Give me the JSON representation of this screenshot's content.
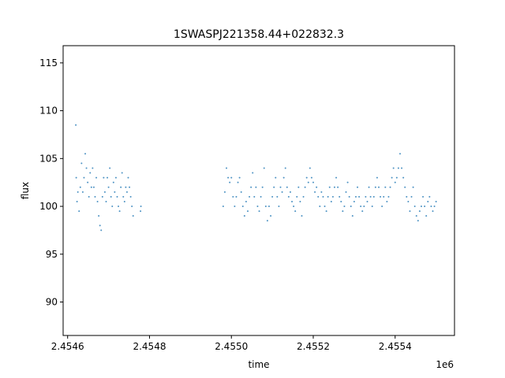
{
  "chart_data": {
    "type": "scatter",
    "title": "1SWASPJ221358.44+022832.3",
    "xlabel": "time",
    "ylabel": "flux",
    "x_offset_label": "1e6",
    "xlim": [
      2454589,
      2455545
    ],
    "ylim": [
      86.5,
      116.8
    ],
    "x_ticks": [
      2454600,
      2454700,
      2454800,
      2455000,
      2455100,
      2455200,
      2455300,
      2455400,
      2455500
    ],
    "x_tick_labels": [
      "2.4546",
      "2.4548",
      "2.4550",
      "2.4552",
      "2.4554"
    ],
    "x_tick_values": [
      2454600,
      2454800,
      2455000,
      2455200,
      2455400
    ],
    "y_ticks": [
      90,
      95,
      100,
      105,
      110,
      115
    ],
    "y_tick_labels": [
      "90",
      "95",
      "100",
      "105",
      "110",
      "115"
    ],
    "grid": false,
    "marker_color": "#1f77b4",
    "series": [
      {
        "x": [
          2454620,
          2454621,
          2454623,
          2454625,
          2454628,
          2454631,
          2454634,
          2454637,
          2454640,
          2454643,
          2454646,
          2454649,
          2454652,
          2454655,
          2454658,
          2454661,
          2454664,
          2454667,
          2454670,
          2454673,
          2454676,
          2454679,
          2454682,
          2454685,
          2454688,
          2454691,
          2454694,
          2454697,
          2454700,
          2454703,
          2454706,
          2454709,
          2454712,
          2454715,
          2454718,
          2454721,
          2454724,
          2454727,
          2454730,
          2454733,
          2454736,
          2454739,
          2454742,
          2454745,
          2454748,
          2454751,
          2454754,
          2454757,
          2454760,
          2454778,
          2454779,
          2454980,
          2454984,
          2454988,
          2454992,
          2454996,
          2455000,
          2455004,
          2455008,
          2455012,
          2455016,
          2455020,
          2455024,
          2455028,
          2455032,
          2455036,
          2455040,
          2455044,
          2455048,
          2455052,
          2455056,
          2455060,
          2455064,
          2455068,
          2455072,
          2455076,
          2455080,
          2455084,
          2455088,
          2455092,
          2455096,
          2455100,
          2455104,
          2455108,
          2455112,
          2455116,
          2455120,
          2455124,
          2455128,
          2455132,
          2455136,
          2455140,
          2455144,
          2455148,
          2455152,
          2455156,
          2455160,
          2455164,
          2455168,
          2455172,
          2455176,
          2455180,
          2455184,
          2455188,
          2455192,
          2455196,
          2455200,
          2455204,
          2455208,
          2455212,
          2455216,
          2455220,
          2455224,
          2455228,
          2455232,
          2455236,
          2455240,
          2455244,
          2455248,
          2455252,
          2455256,
          2455260,
          2455264,
          2455268,
          2455272,
          2455276,
          2455280,
          2455284,
          2455288,
          2455292,
          2455296,
          2455300,
          2455304,
          2455308,
          2455312,
          2455316,
          2455320,
          2455324,
          2455328,
          2455332,
          2455336,
          2455340,
          2455344,
          2455348,
          2455352,
          2455356,
          2455360,
          2455364,
          2455368,
          2455372,
          2455376,
          2455380,
          2455384,
          2455388,
          2455392,
          2455396,
          2455400,
          2455404,
          2455408,
          2455412,
          2455416,
          2455420,
          2455424,
          2455428,
          2455432,
          2455436,
          2455440,
          2455444,
          2455448,
          2455452,
          2455456,
          2455460,
          2455464,
          2455468,
          2455472,
          2455476,
          2455480,
          2455484,
          2455488,
          2455492,
          2455496,
          2455500
        ],
        "y": [
          108.5,
          103,
          100.5,
          101.5,
          99.5,
          102,
          104.5,
          101.5,
          103,
          105.5,
          104,
          102.5,
          101,
          103.5,
          102,
          104,
          102,
          101,
          103,
          100.5,
          99,
          98,
          97.5,
          101,
          103,
          101.5,
          100.5,
          103,
          102,
          104,
          101,
          100,
          102.5,
          101.5,
          103,
          101,
          100,
          99.5,
          102,
          103.5,
          101,
          100.5,
          102,
          101.5,
          103,
          102,
          101,
          100,
          99,
          99.5,
          100,
          100,
          101.5,
          104,
          103,
          102.5,
          103,
          101,
          100,
          101,
          102.5,
          103,
          101.5,
          100,
          99,
          100.5,
          99.5,
          101,
          102,
          103.5,
          101,
          102,
          100,
          99.5,
          101,
          102,
          104,
          100,
          98.5,
          100,
          99,
          101,
          102,
          103,
          101,
          100,
          102,
          101.5,
          103,
          104,
          102,
          101,
          101.5,
          100.5,
          100,
          99.5,
          101,
          102,
          100.5,
          99,
          101,
          102,
          103,
          102.5,
          104,
          103,
          102.5,
          101.5,
          102,
          101,
          100,
          101.5,
          101,
          100,
          99.5,
          101,
          102,
          100.5,
          101,
          102,
          103,
          102,
          101,
          100.5,
          99.5,
          100,
          101.5,
          102.5,
          101,
          100,
          99,
          100.5,
          101,
          102,
          101,
          100,
          99.5,
          100,
          101,
          100.5,
          102,
          101,
          100,
          101,
          102,
          103,
          102,
          101,
          100,
          101,
          102,
          100.5,
          101,
          102,
          103,
          104,
          102.5,
          103,
          104,
          105.5,
          104,
          103,
          102,
          101,
          100.5,
          99.5,
          101,
          102,
          100,
          99,
          98.5,
          99.5,
          100,
          101,
          100,
          99,
          100.5,
          101,
          100,
          99.5,
          100,
          100.5
        ]
      }
    ]
  }
}
